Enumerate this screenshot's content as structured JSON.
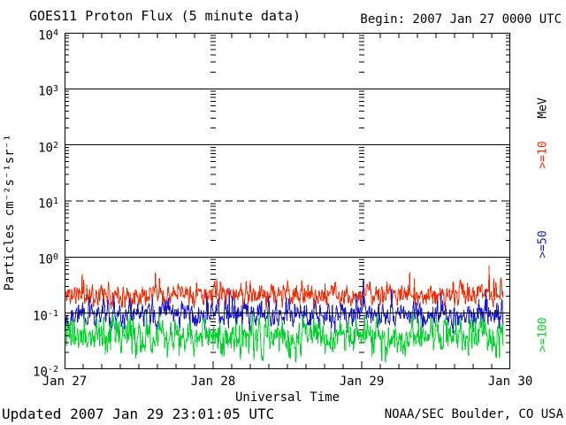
{
  "header": {
    "title": "GOES11 Proton Flux (5 minute data)",
    "begin": "Begin: 2007 Jan 27 0000 UTC"
  },
  "footer": {
    "updated": "Updated 2007 Jan 29 23:01:05 UTC",
    "credit": "NOAA/SEC Boulder, CO USA"
  },
  "chart_data": {
    "type": "line",
    "title": "GOES11 Proton Flux (5 minute data)",
    "xlabel": "Universal Time",
    "ylabel": "Particles cm⁻²s⁻¹sr⁻¹",
    "x_start": "2007 Jan 27 0000 UTC",
    "x_span_days": 3,
    "x_tick_labels": [
      "Jan 27",
      "Jan 28",
      "Jan 29",
      "Jan 30"
    ],
    "x_minor_tick_hours": 3,
    "y_scale": "log10",
    "y_range": [
      0.01,
      10000
    ],
    "y_ticks": [
      {
        "base": "10",
        "exp": "4"
      },
      {
        "base": "10",
        "exp": "3"
      },
      {
        "base": "10",
        "exp": "2"
      },
      {
        "base": "10",
        "exp": "1"
      },
      {
        "base": "10",
        "exp": "0"
      },
      {
        "base": "10",
        "exp": "-1"
      },
      {
        "base": "10",
        "exp": "-2"
      }
    ],
    "grid": {
      "hlines": [
        {
          "value": 1000,
          "style": "solid"
        },
        {
          "value": 100,
          "style": "solid"
        },
        {
          "value": 10,
          "style": "dashed"
        },
        {
          "value": 1,
          "style": "solid"
        },
        {
          "value": 0.1,
          "style": "solid"
        }
      ],
      "day_tick_columns_at_day": [
        1,
        2
      ]
    },
    "legend": [
      {
        "label": "MeV",
        "color": "#000000",
        "center_y": 122
      },
      {
        "label": ">=10",
        "color": "#fa2800",
        "center_y": 175
      },
      {
        "label": ">=50",
        "color": "#1818cf",
        "center_y": 276
      },
      {
        "label": ">=100",
        "color": "#00d42a",
        "center_y": 378
      }
    ],
    "samples_per_day": 288,
    "data_span_days": 2.958,
    "series": [
      {
        "name": ">=10 MeV",
        "color": "#fa2800",
        "typical_flux": 0.21,
        "band_min": 0.12,
        "band_max": 0.45,
        "spike_max": 0.75,
        "log10_mean": -0.67,
        "log10_sigma": 0.1,
        "spike_prob": 0.012,
        "spike_log10_amp": 0.45,
        "seed": 11
      },
      {
        "name": ">=50 MeV",
        "color": "#1818cf",
        "typical_flux": 0.095,
        "band_min": 0.05,
        "band_max": 0.2,
        "spike_max": 0.32,
        "log10_mean": -1.02,
        "log10_sigma": 0.115,
        "spike_prob": 0.01,
        "spike_log10_amp": 0.42,
        "seed": 22
      },
      {
        "name": ">=100 MeV",
        "color": "#00d42a",
        "typical_flux": 0.038,
        "band_min": 0.017,
        "band_max": 0.09,
        "spike_max": 0.11,
        "log10_mean": -1.42,
        "log10_sigma": 0.165,
        "spike_prob": 0.008,
        "spike_log10_amp": 0.35,
        "seed": 33
      }
    ],
    "note": "All three channels at quiet background levels (noise band); values estimated from plot"
  }
}
